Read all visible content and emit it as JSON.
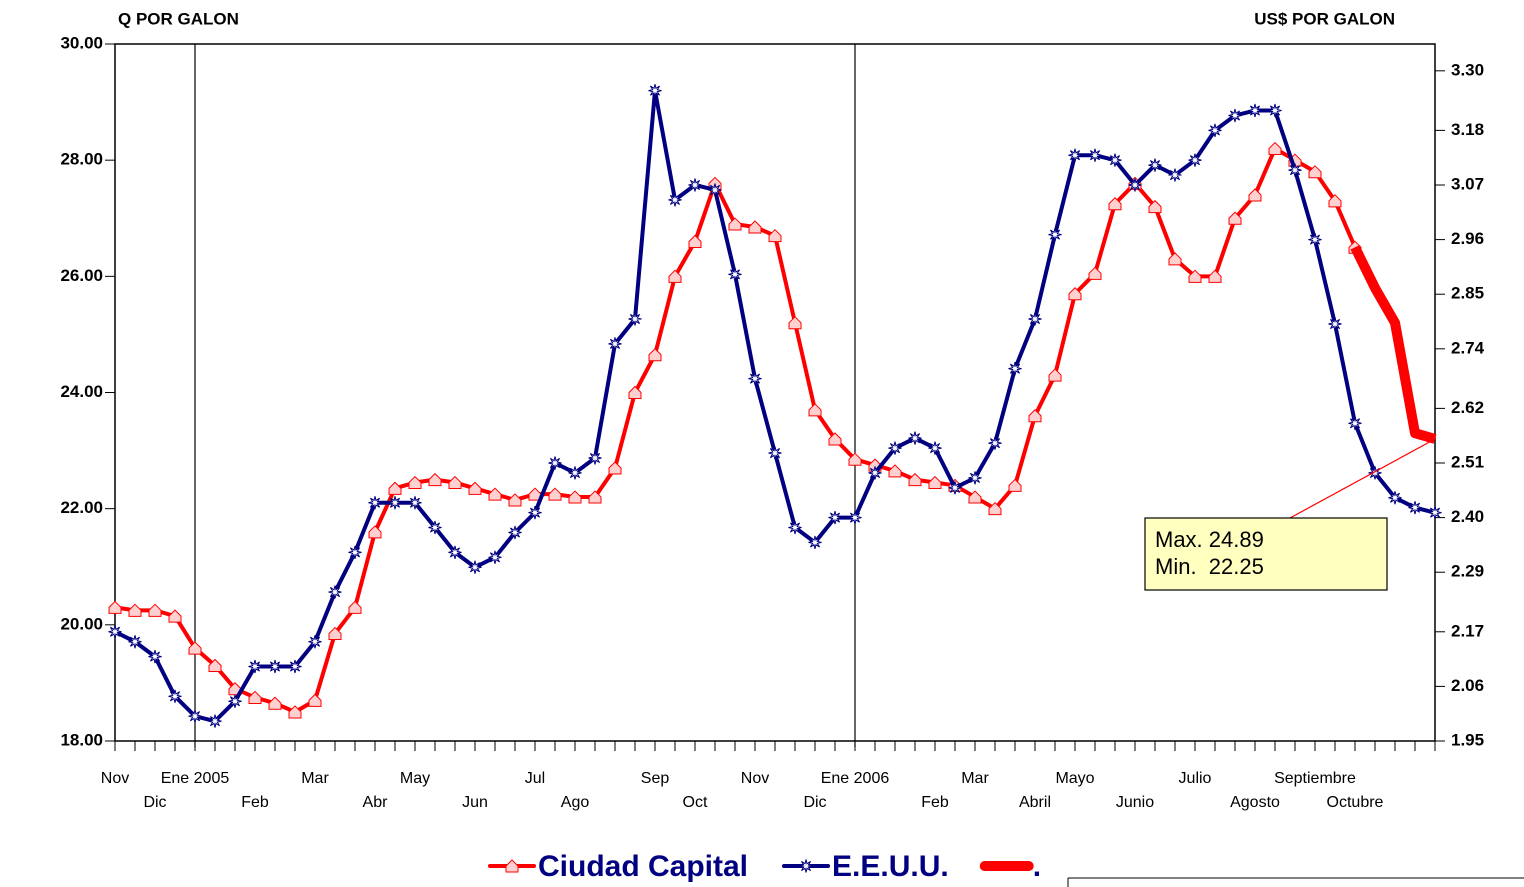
{
  "chart_data": {
    "type": "line",
    "y_label": "Q POR GALON",
    "y2_label": "US$ POR GALON",
    "categories": [
      "Nov",
      null,
      "Dic",
      null,
      "Ene 2005",
      null,
      null,
      "Feb",
      null,
      null,
      "Mar",
      null,
      null,
      "Abr",
      null,
      "May",
      null,
      null,
      "Jun",
      null,
      null,
      "Jul",
      null,
      "Ago",
      null,
      null,
      null,
      "Sep",
      null,
      "Oct",
      null,
      null,
      "Nov",
      null,
      null,
      "Dic",
      null,
      "Ene 2006",
      null,
      null,
      null,
      "Feb",
      null,
      "Mar",
      null,
      null,
      "Abril",
      null,
      "Mayo",
      null,
      null,
      "Junio",
      null,
      null,
      "Julio",
      null,
      null,
      "Agosto",
      null,
      null,
      "Septiembre",
      null,
      "Octubre",
      null,
      null,
      null,
      null
    ],
    "series": [
      {
        "name": "Ciudad Capital",
        "color": "#ff0000",
        "marker": "house",
        "values": [
          20.3,
          20.25,
          20.25,
          20.15,
          19.6,
          19.3,
          18.9,
          18.75,
          18.65,
          18.5,
          18.7,
          19.85,
          20.3,
          21.6,
          22.35,
          22.45,
          22.5,
          22.45,
          22.35,
          22.25,
          22.15,
          22.25,
          22.25,
          22.2,
          22.2,
          22.7,
          24.0,
          24.65,
          26.0,
          26.6,
          27.6,
          26.9,
          26.85,
          26.7,
          25.2,
          23.7,
          23.2,
          22.85,
          22.75,
          22.65,
          22.5,
          22.45,
          22.4,
          22.2,
          22.0,
          22.4,
          23.6,
          24.3,
          25.7,
          26.05,
          27.25,
          27.6,
          27.2,
          26.3,
          26.0,
          26.0,
          27.0,
          27.4,
          28.2,
          28.0,
          27.8,
          27.3,
          26.5,
          null,
          null,
          null,
          null
        ]
      },
      {
        "name": "E.E.U.U.",
        "color": "#000080",
        "marker": "star",
        "axis": "y2",
        "values": [
          2.17,
          2.15,
          2.12,
          2.04,
          2.0,
          1.99,
          2.03,
          2.1,
          2.1,
          2.1,
          2.15,
          2.25,
          2.33,
          2.43,
          2.43,
          2.43,
          2.38,
          2.33,
          2.3,
          2.32,
          2.37,
          2.41,
          2.51,
          2.49,
          2.52,
          2.75,
          2.8,
          3.26,
          3.04,
          3.07,
          3.06,
          2.89,
          2.68,
          2.53,
          2.38,
          2.35,
          2.4,
          2.4,
          2.49,
          2.54,
          2.56,
          2.54,
          2.46,
          2.48,
          2.55,
          2.7,
          2.8,
          2.97,
          3.13,
          3.13,
          3.12,
          3.07,
          3.11,
          3.09,
          3.12,
          3.18,
          3.21,
          3.22,
          3.22,
          3.1,
          2.96,
          2.79,
          2.59,
          2.49,
          2.44,
          2.42,
          2.41
        ]
      },
      {
        "name": ".",
        "color": "#ff0000",
        "values": [
          null,
          null,
          null,
          null,
          null,
          null,
          null,
          null,
          null,
          null,
          null,
          null,
          null,
          null,
          null,
          null,
          null,
          null,
          null,
          null,
          null,
          null,
          null,
          null,
          null,
          null,
          null,
          null,
          null,
          null,
          null,
          null,
          null,
          null,
          null,
          null,
          null,
          null,
          null,
          null,
          null,
          null,
          null,
          null,
          null,
          null,
          null,
          null,
          null,
          null,
          null,
          null,
          null,
          null,
          null,
          null,
          null,
          null,
          null,
          null,
          null,
          null,
          26.5,
          25.8,
          25.2,
          23.3,
          23.2
        ]
      }
    ],
    "ylim": [
      18,
      30
    ],
    "yticks": [
      {
        "value": 18,
        "label": "18.00"
      },
      {
        "value": 20,
        "label": "20.00"
      },
      {
        "value": 22,
        "label": "22.00"
      },
      {
        "value": 24,
        "label": "24.00"
      },
      {
        "value": 26,
        "label": "26.00"
      },
      {
        "value": 28,
        "label": "28.00"
      },
      {
        "value": 30,
        "label": "30.00"
      }
    ],
    "y2lim": [
      1.95,
      3.354
    ],
    "y2ticks": [
      1.95,
      2.06,
      2.17,
      2.29,
      {
        "value": 2.4,
        "label": "2.40"
      },
      2.51,
      2.62,
      2.74,
      2.85,
      2.96,
      3.07,
      3.18,
      {
        "value": 3.3,
        "label": "3.30"
      }
    ],
    "annotations": [
      "Max. 24.89",
      "Min.  22.25"
    ]
  }
}
